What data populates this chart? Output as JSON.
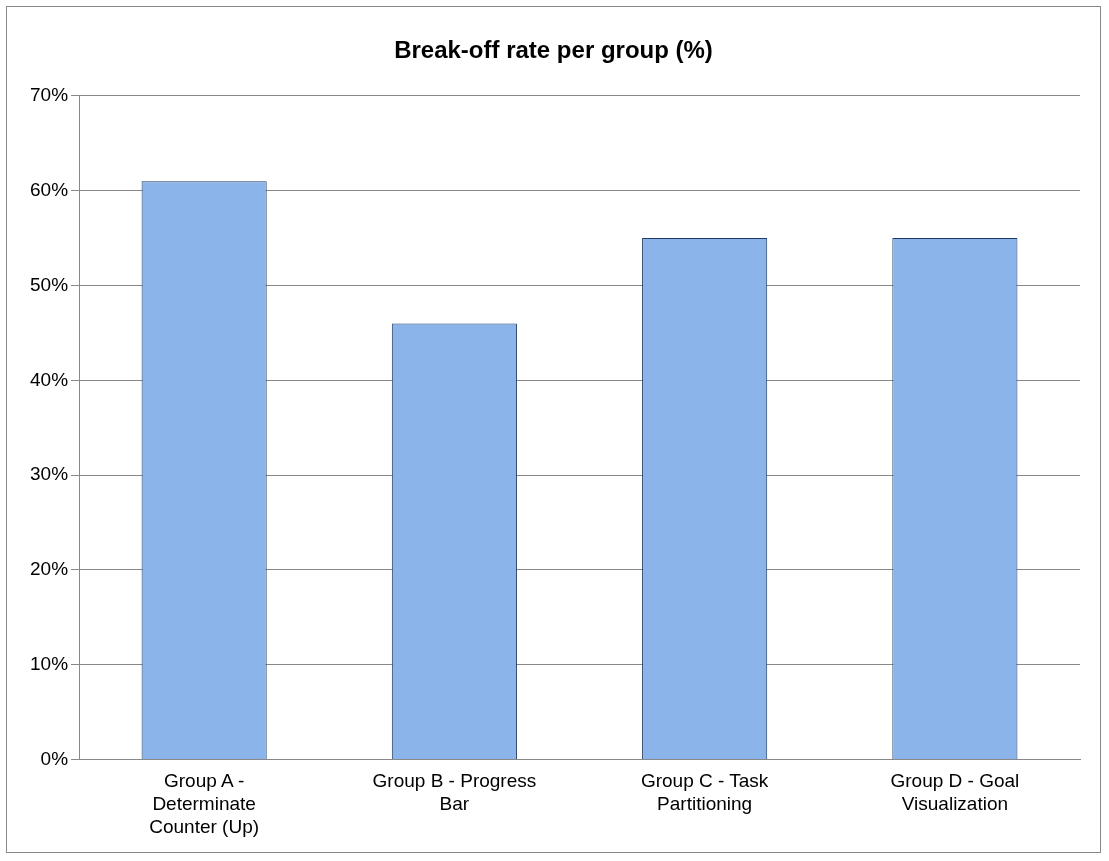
{
  "chart_data": {
    "type": "bar",
    "title": "Break-off rate per group (%)",
    "categories": [
      "Group A - Determinate Counter (Up)",
      "Group B - Progress Bar",
      "Group C - Task Partitioning",
      "Group D - Goal Visualization"
    ],
    "values": [
      61,
      46,
      55,
      55
    ],
    "color": "#8ab4ea",
    "ylim": [
      0,
      70
    ],
    "yticks": [
      {
        "value": 0,
        "label": "0%"
      },
      {
        "value": 10,
        "label": "10%"
      },
      {
        "value": 20,
        "label": "20%"
      },
      {
        "value": 30,
        "label": "30%"
      },
      {
        "value": 40,
        "label": "40%"
      },
      {
        "value": 50,
        "label": "50%"
      },
      {
        "value": 60,
        "label": "60%"
      },
      {
        "value": 70,
        "label": "70%"
      }
    ],
    "grid": "y",
    "legend": false
  }
}
